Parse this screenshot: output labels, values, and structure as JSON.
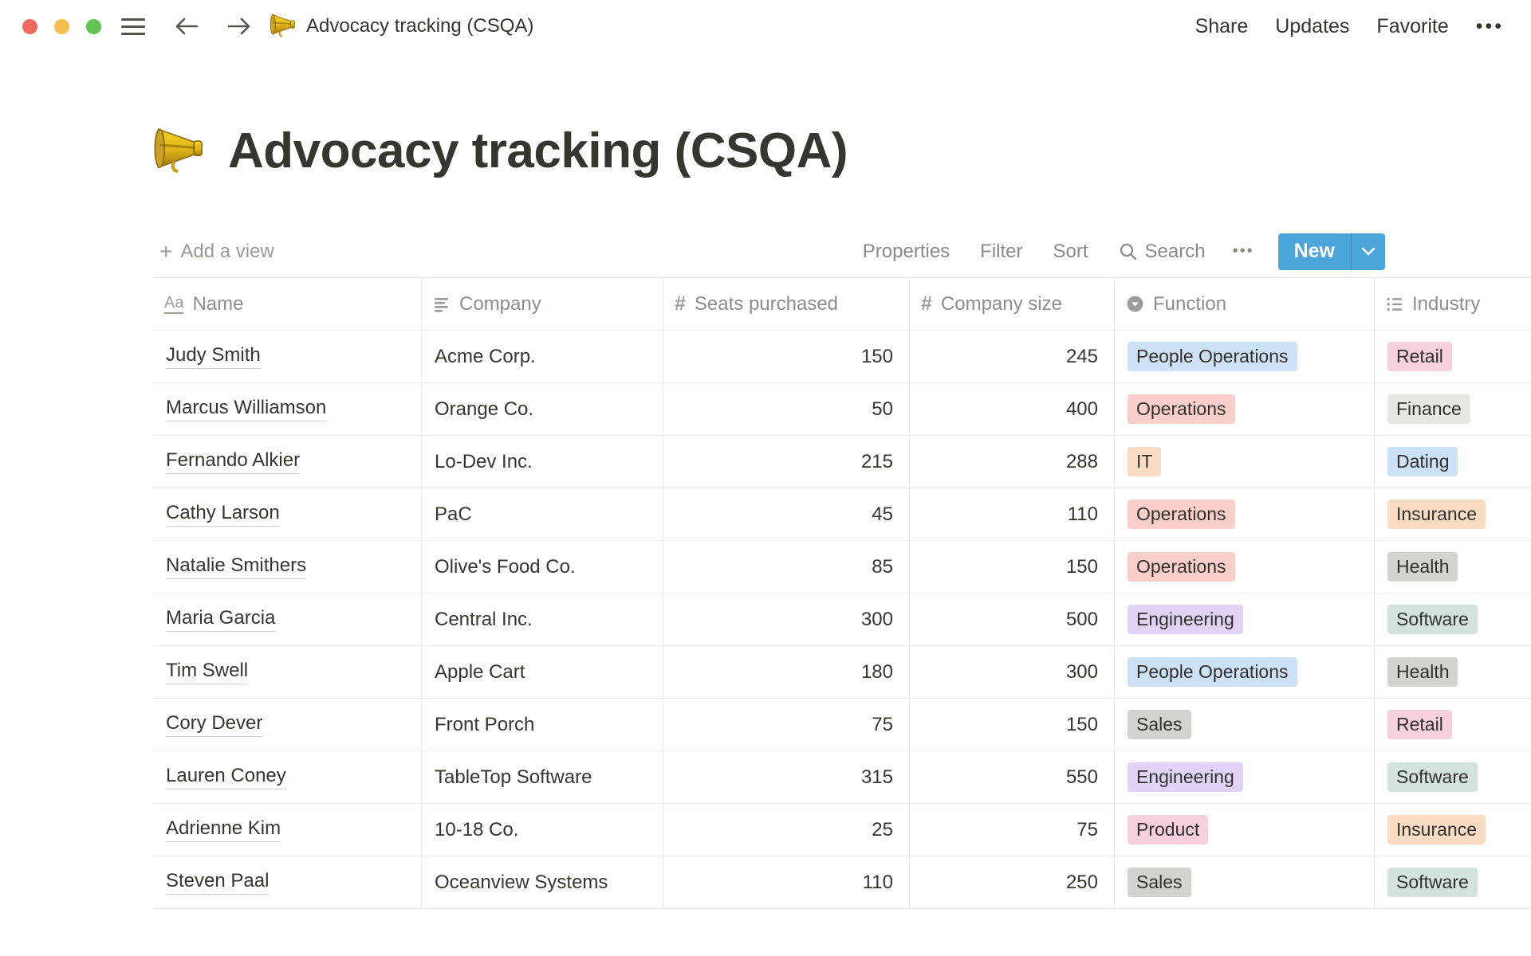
{
  "topbar": {
    "doc_title": "Advocacy tracking (CSQA)",
    "share": "Share",
    "updates": "Updates",
    "favorite": "Favorite",
    "more": "•••"
  },
  "page": {
    "emoji": "megaphone",
    "title": "Advocacy tracking (CSQA)"
  },
  "toolbar": {
    "add_view": "Add a view",
    "properties": "Properties",
    "filter": "Filter",
    "sort": "Sort",
    "search": "Search",
    "more": "•••",
    "new_label": "New"
  },
  "colors": {
    "accent_blue": "#4BA5D8",
    "tag_palette": {
      "blue": "#CDE1F6",
      "red": "#FACFCB",
      "orange": "#FADCC5",
      "pink": "#F7D0E0",
      "purple": "#E1D3F8",
      "green": "#D3E3DB",
      "gray": "#D3D2CF",
      "lightgray": "#E8E7E4"
    }
  },
  "table": {
    "columns": [
      {
        "label": "Name",
        "icon": "title-aa-icon",
        "type": "title"
      },
      {
        "label": "Company",
        "icon": "text-icon",
        "type": "text"
      },
      {
        "label": "Seats purchased",
        "icon": "number-hash-icon",
        "type": "number"
      },
      {
        "label": "Company size",
        "icon": "number-hash-icon",
        "type": "number"
      },
      {
        "label": "Function",
        "icon": "select-icon",
        "type": "select"
      },
      {
        "label": "Industry",
        "icon": "multi-select-list-icon",
        "type": "multi_select"
      }
    ],
    "rows": [
      {
        "name": "Judy Smith",
        "company": "Acme Corp.",
        "seats": "150",
        "size": "245",
        "function": {
          "label": "People Operations",
          "color": "blue"
        },
        "industry": {
          "label": "Retail",
          "color": "pink"
        }
      },
      {
        "name": "Marcus Williamson",
        "company": "Orange Co.",
        "seats": "50",
        "size": "400",
        "function": {
          "label": "Operations",
          "color": "red"
        },
        "industry": {
          "label": "Finance",
          "color": "lightgray"
        }
      },
      {
        "name": "Fernando Alkier",
        "company": "Lo-Dev Inc.",
        "seats": "215",
        "size": "288",
        "function": {
          "label": "IT",
          "color": "orange"
        },
        "industry": {
          "label": "Dating",
          "color": "blue"
        }
      },
      {
        "name": "Cathy Larson",
        "company": "PaC",
        "seats": "45",
        "size": "110",
        "function": {
          "label": "Operations",
          "color": "red"
        },
        "industry": {
          "label": "Insurance",
          "color": "orange"
        }
      },
      {
        "name": "Natalie Smithers",
        "company": "Olive's Food Co.",
        "seats": "85",
        "size": "150",
        "function": {
          "label": "Operations",
          "color": "red"
        },
        "industry": {
          "label": "Health",
          "color": "gray"
        }
      },
      {
        "name": "Maria Garcia",
        "company": "Central Inc.",
        "seats": "300",
        "size": "500",
        "function": {
          "label": "Engineering",
          "color": "purple"
        },
        "industry": {
          "label": "Software",
          "color": "green"
        }
      },
      {
        "name": "Tim Swell",
        "company": "Apple Cart",
        "seats": "180",
        "size": "300",
        "function": {
          "label": "People Operations",
          "color": "blue"
        },
        "industry": {
          "label": "Health",
          "color": "gray"
        }
      },
      {
        "name": "Cory Dever",
        "company": "Front Porch",
        "seats": "75",
        "size": "150",
        "function": {
          "label": "Sales",
          "color": "gray"
        },
        "industry": {
          "label": "Retail",
          "color": "pink"
        }
      },
      {
        "name": "Lauren Coney",
        "company": "TableTop Software",
        "seats": "315",
        "size": "550",
        "function": {
          "label": "Engineering",
          "color": "purple"
        },
        "industry": {
          "label": "Software",
          "color": "green"
        }
      },
      {
        "name": "Adrienne Kim",
        "company": "10-18 Co.",
        "seats": "25",
        "size": "75",
        "function": {
          "label": "Product",
          "color": "pink"
        },
        "industry": {
          "label": "Insurance",
          "color": "orange"
        }
      },
      {
        "name": "Steven Paal",
        "company": "Oceanview Systems",
        "seats": "110",
        "size": "250",
        "function": {
          "label": "Sales",
          "color": "gray"
        },
        "industry": {
          "label": "Software",
          "color": "green"
        }
      }
    ]
  }
}
